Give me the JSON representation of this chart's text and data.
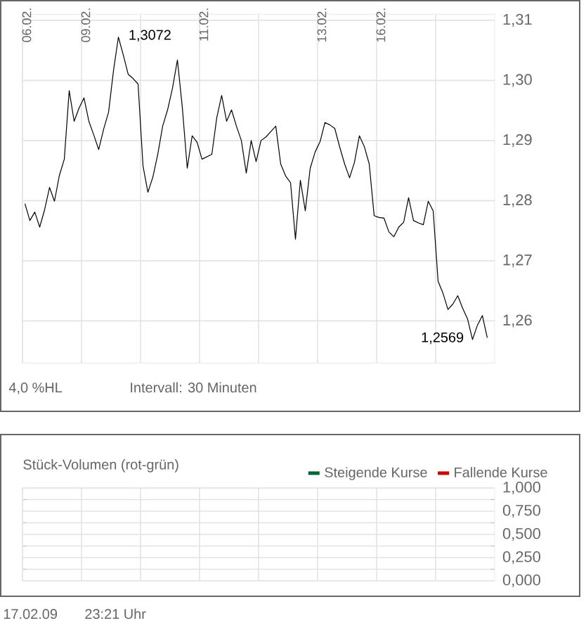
{
  "chart_data": [
    {
      "type": "line",
      "color": "#000000",
      "categories": [
        "06.02.",
        null,
        null,
        null,
        null,
        null,
        null,
        null,
        null,
        null,
        null,
        null,
        "09.02.",
        null,
        null,
        null,
        null,
        null,
        null,
        null,
        null,
        null,
        null,
        null,
        null,
        null,
        null,
        null,
        null,
        null,
        null,
        null,
        null,
        null,
        null,
        null,
        "11.02.",
        null,
        null,
        null,
        null,
        null,
        null,
        null,
        null,
        null,
        null,
        null,
        null,
        null,
        null,
        null,
        null,
        null,
        null,
        null,
        null,
        null,
        null,
        null,
        "13.02.",
        null,
        null,
        null,
        null,
        null,
        null,
        null,
        null,
        null,
        null,
        null,
        "16.02.",
        null,
        null,
        null,
        null,
        null,
        null,
        null,
        null,
        null,
        null,
        null,
        null,
        null,
        null,
        null,
        null,
        null,
        null,
        null,
        null,
        null,
        null,
        null
      ],
      "values": [
        1.2795,
        1.2767,
        1.2781,
        1.2756,
        1.2785,
        1.2822,
        1.2799,
        1.2842,
        1.2869,
        1.2983,
        1.2932,
        1.2954,
        1.2971,
        1.2932,
        1.2909,
        1.2885,
        1.2919,
        1.2947,
        1.3016,
        1.3072,
        1.3042,
        1.301,
        1.3003,
        1.2994,
        1.2858,
        1.2814,
        1.2839,
        1.2877,
        1.2924,
        1.2951,
        1.2987,
        1.3034,
        1.2955,
        1.2854,
        1.2908,
        1.2897,
        1.2869,
        1.2873,
        1.2877,
        1.2938,
        1.2975,
        1.2932,
        1.2951,
        1.2924,
        1.29,
        1.2846,
        1.29,
        1.2865,
        1.29,
        1.2906,
        1.2915,
        1.2924,
        1.2861,
        1.2841,
        1.283,
        1.2736,
        1.2834,
        1.2783,
        1.2854,
        1.2881,
        1.2898,
        1.293,
        1.2926,
        1.292,
        1.2889,
        1.2861,
        1.2838,
        1.2864,
        1.2908,
        1.289,
        1.2861,
        1.2775,
        1.2772,
        1.2771,
        1.2748,
        1.274,
        1.2756,
        1.2764,
        1.2805,
        1.2767,
        1.2763,
        1.276,
        1.2799,
        1.2783,
        1.2666,
        1.2646,
        1.2619,
        1.2628,
        1.2642,
        1.2621,
        1.2603,
        1.2569,
        1.2593,
        1.2609,
        1.2572,
        null
      ],
      "ylim": [
        1.253,
        1.311
      ],
      "yticks": [
        {
          "value": 1.26,
          "label": "1,26"
        },
        {
          "value": 1.27,
          "label": "1,27"
        },
        {
          "value": 1.28,
          "label": "1,28"
        },
        {
          "value": 1.29,
          "label": "1,29"
        },
        {
          "value": 1.3,
          "label": "1,30"
        },
        {
          "value": 1.31,
          "label": "1,31"
        }
      ],
      "grid": true,
      "annotations": [
        "1,3072",
        "1,2569",
        "4,0 %HL",
        "Intervall: 30 Minuten"
      ]
    },
    {
      "type": "bar",
      "title": "Stück-Volumen (rot-grün)",
      "series": [
        {
          "name": "Steigende Kurse",
          "color": "#006633"
        },
        {
          "name": "Fallende Kurse",
          "color": "#cc0000"
        }
      ],
      "ylim": [
        0,
        1
      ],
      "yticks": [
        {
          "value": 0,
          "label": "0,000"
        },
        {
          "value": 0.25,
          "label": "0,250"
        },
        {
          "value": 0.5,
          "label": "0,500"
        },
        {
          "value": 0.75,
          "label": "0,750"
        },
        {
          "value": 1,
          "label": "1,000"
        }
      ],
      "tick_labels": "y",
      "grid": true,
      "legend": "top right",
      "annotations": [
        "17.02.09",
        "23:21 Uhr"
      ]
    }
  ]
}
